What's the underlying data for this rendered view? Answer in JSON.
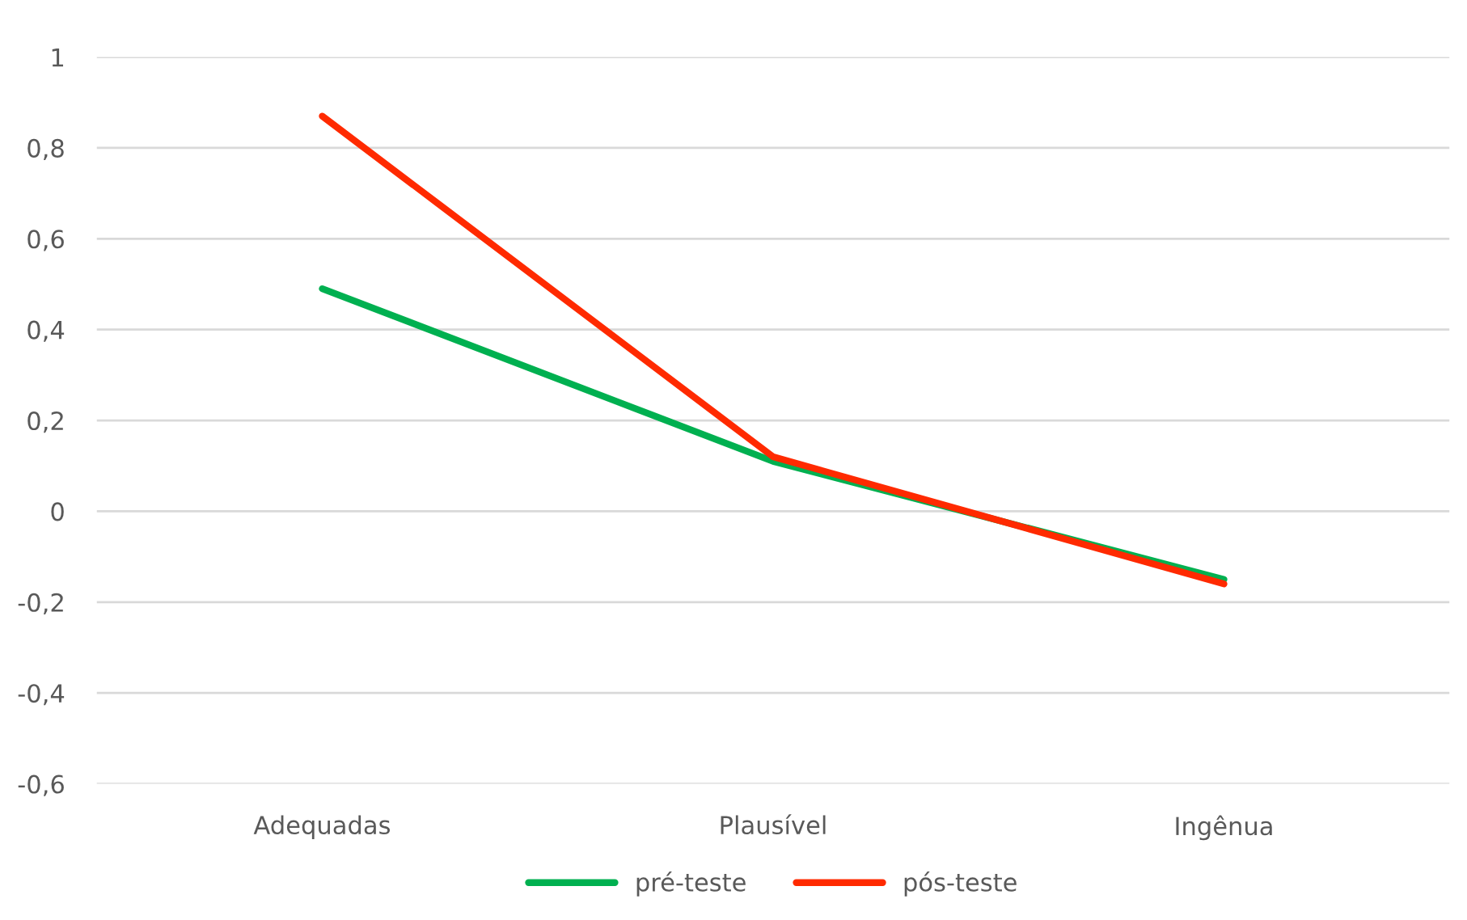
{
  "chart_data": {
    "type": "line",
    "categories": [
      "Adequadas",
      "Plausível",
      "Ingênua"
    ],
    "series": [
      {
        "name": "pré-teste",
        "color": "#00b050",
        "values": [
          0.49,
          0.11,
          -0.15
        ]
      },
      {
        "name": "pós-teste",
        "color": "#ff2a00",
        "values": [
          0.87,
          0.12,
          -0.16
        ]
      }
    ],
    "ylim": [
      -0.6,
      1
    ],
    "yticks": [
      {
        "value": -0.6,
        "label": "-0,6"
      },
      {
        "value": -0.4,
        "label": "-0,4"
      },
      {
        "value": -0.2,
        "label": "-0,2"
      },
      0,
      {
        "value": 0.2,
        "label": "0,2"
      },
      {
        "value": 0.4,
        "label": "0,4"
      },
      {
        "value": 0.6,
        "label": "0,6"
      },
      {
        "value": 0.8,
        "label": "0,8"
      },
      1
    ],
    "grid": "y",
    "legend": "bottom",
    "marker": "none",
    "line_style": "solid"
  }
}
